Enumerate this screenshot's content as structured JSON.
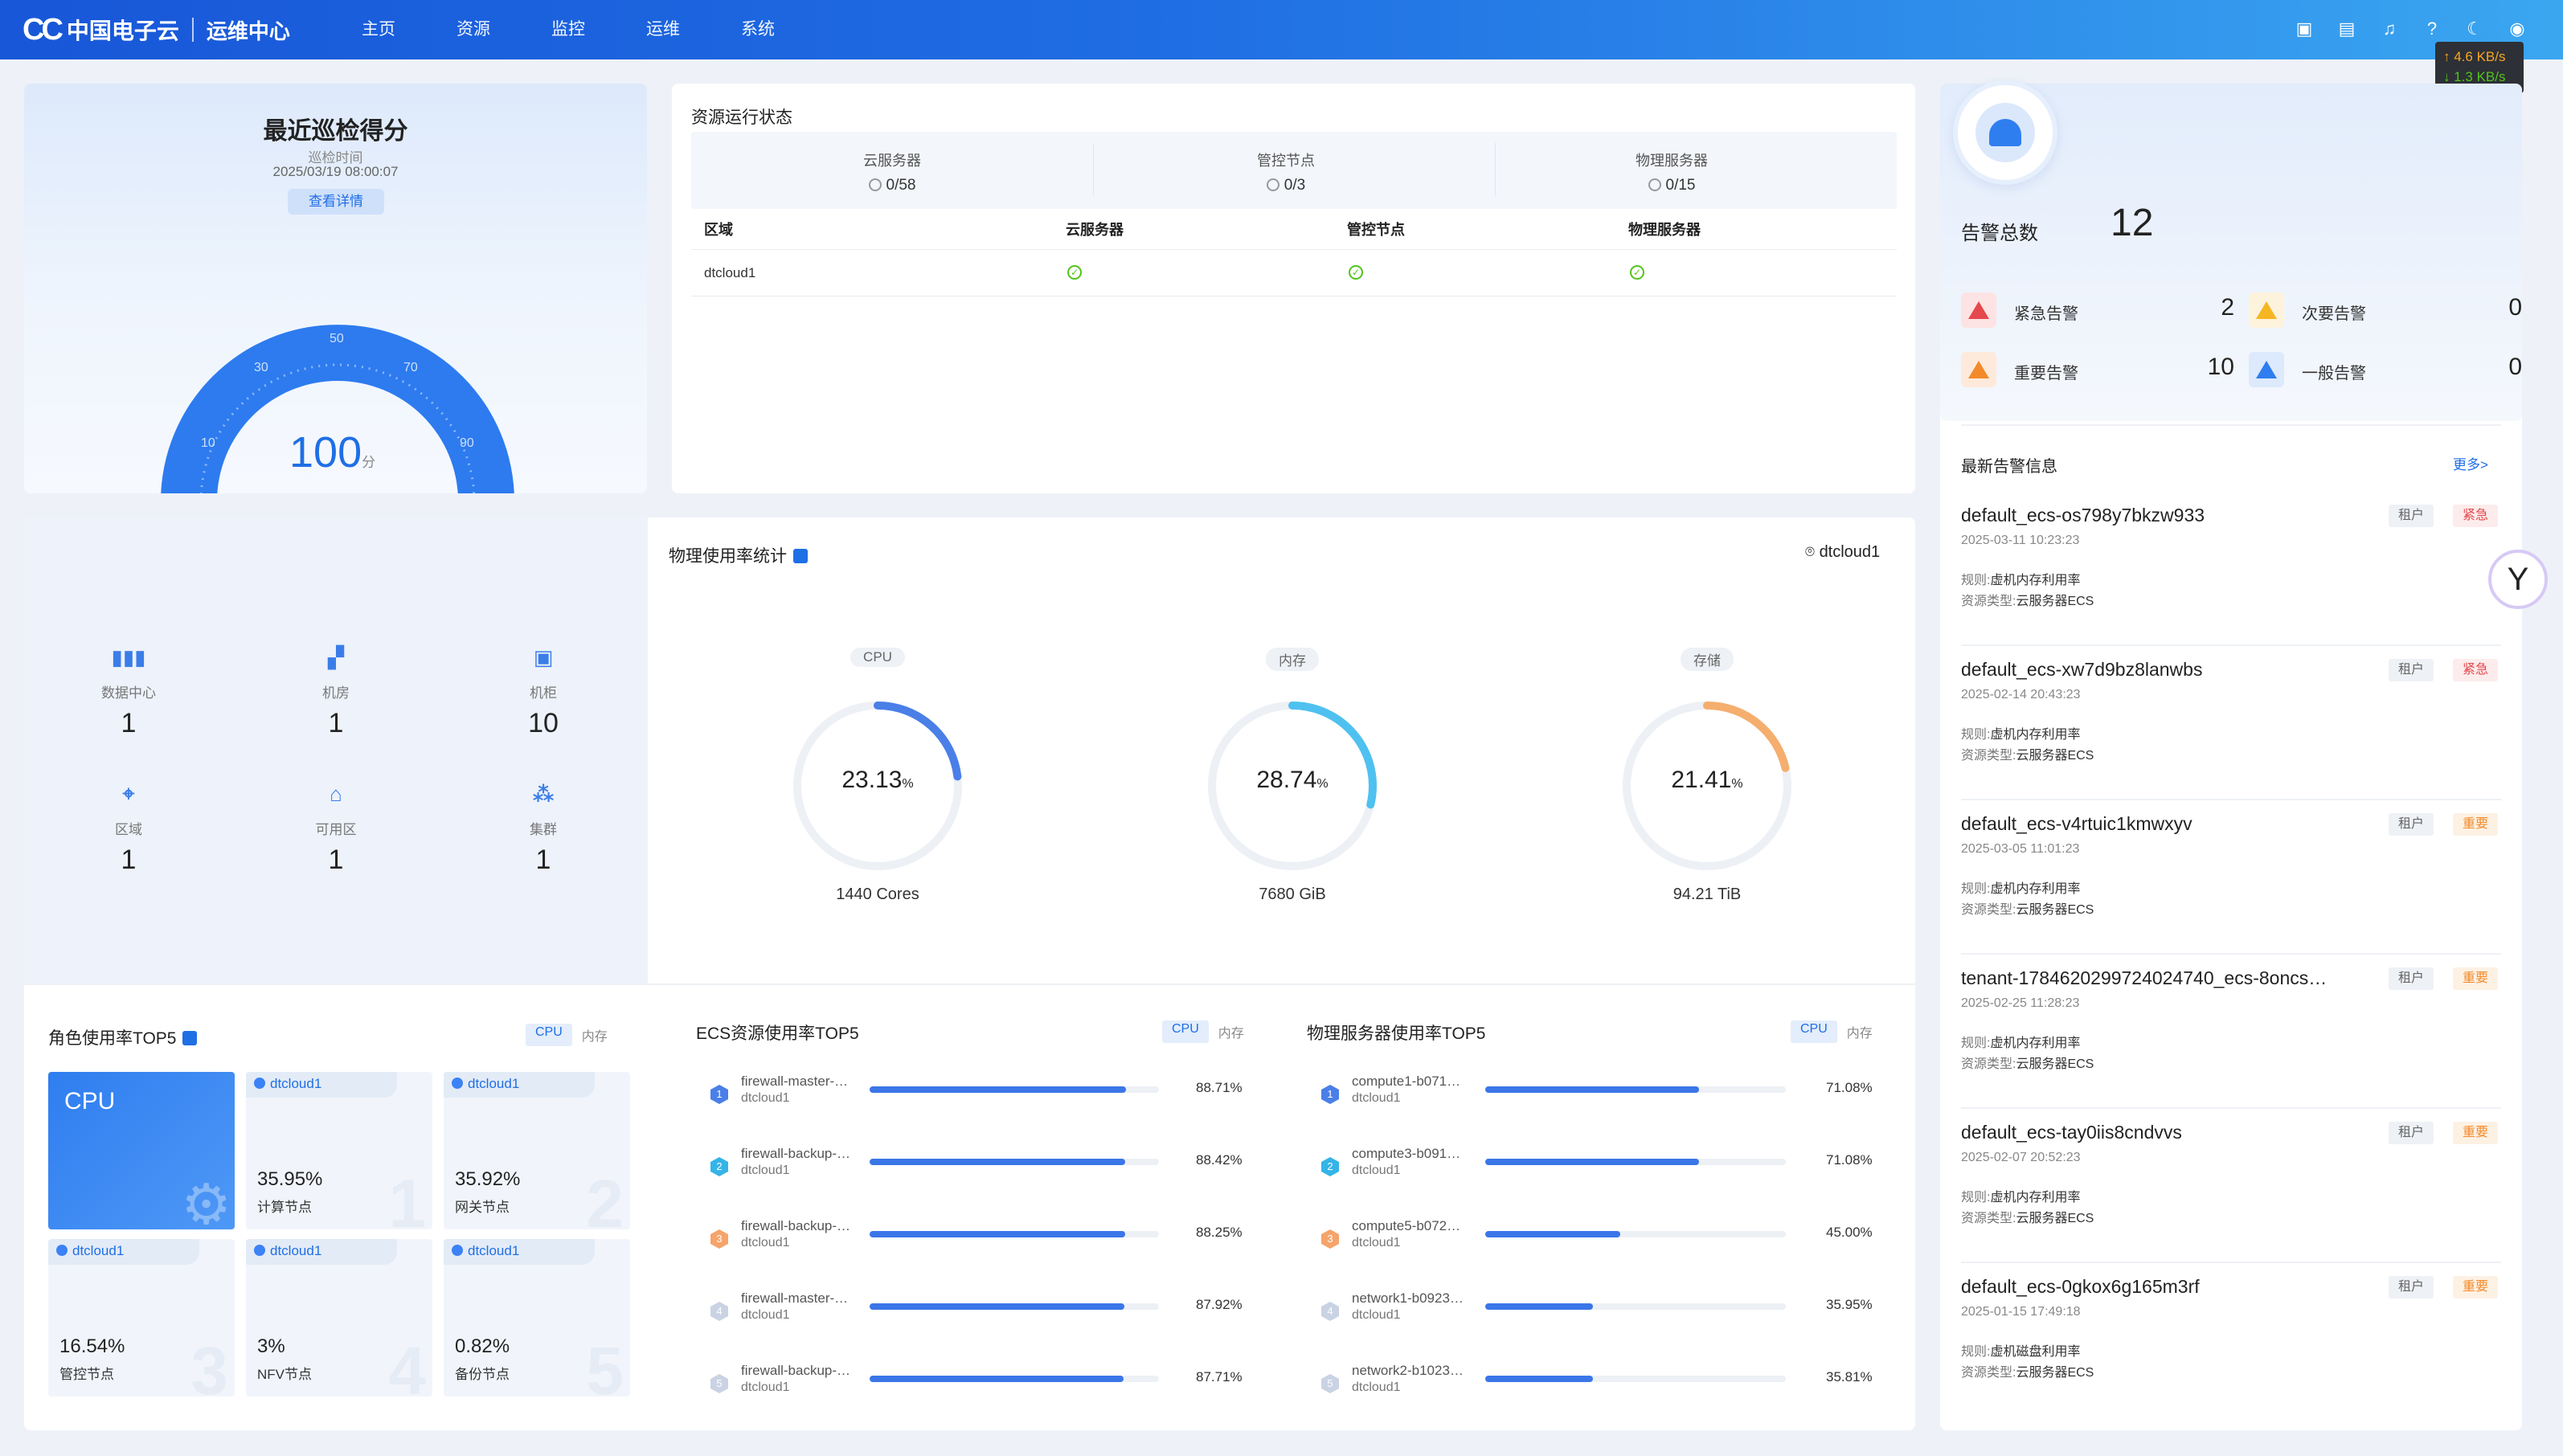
{
  "header": {
    "logo_mark": "CC",
    "brand": "中国电子云",
    "subtitle": "运维中心",
    "nav": [
      "主页",
      "资源",
      "监控",
      "运维",
      "系统"
    ],
    "icons": [
      "screen-icon",
      "document-icon",
      "bell-icon",
      "help-icon",
      "moon-icon",
      "user-icon"
    ],
    "net": {
      "up": "↑ 4.6 KB/s",
      "down": "↓ 1.3 KB/s"
    }
  },
  "score": {
    "title": "最近巡检得分",
    "time_label": "巡检时间",
    "time": "2025/03/19 08:00:07",
    "button": "查看详情",
    "value": "100",
    "unit": "分",
    "ticks": [
      "10",
      "30",
      "50",
      "70",
      "90"
    ],
    "gauge_value": 100
  },
  "resource": {
    "title": "资源运行状态",
    "summary": [
      {
        "label": "云服务器",
        "value": "0/58"
      },
      {
        "label": "管控节点",
        "value": "0/3"
      },
      {
        "label": "物理服务器",
        "value": "0/15"
      }
    ],
    "columns": [
      "区域",
      "云服务器",
      "管控节点",
      "物理服务器"
    ],
    "rows": [
      {
        "region": "dtcloud1"
      }
    ]
  },
  "alarm": {
    "total_label": "告警总数",
    "total": "12",
    "levels": [
      {
        "label": "紧急告警",
        "count": "2",
        "color": "#e5484d"
      },
      {
        "label": "次要告警",
        "count": "0",
        "color": "#f5b623"
      },
      {
        "label": "重要告警",
        "count": "10",
        "color": "#f28a2a"
      },
      {
        "label": "一般告警",
        "count": "0",
        "color": "#2f7ef0"
      }
    ],
    "latest_title": "最新告警信息",
    "more": "更多>",
    "rule_label": "规则:",
    "type_label": "资源类型:",
    "items": [
      {
        "name": "default_ecs-os798y7bkzw933",
        "date": "2025-03-11 10:23:23",
        "rule": "虚机内存利用率",
        "type": "云服务器ECS",
        "tag1": "租户",
        "tag2": "紧急",
        "tag2_color": "#e5484d",
        "tag2_bg": "#fdecec"
      },
      {
        "name": "default_ecs-xw7d9bz8lanwbs",
        "date": "2025-02-14 20:43:23",
        "rule": "虚机内存利用率",
        "type": "云服务器ECS",
        "tag1": "租户",
        "tag2": "紧急",
        "tag2_color": "#e5484d",
        "tag2_bg": "#fdecec"
      },
      {
        "name": "default_ecs-v4rtuic1kmwxyv",
        "date": "2025-03-05 11:01:23",
        "rule": "虚机内存利用率",
        "type": "云服务器ECS",
        "tag1": "租户",
        "tag2": "重要",
        "tag2_color": "#f28a2a",
        "tag2_bg": "#fdf1e4"
      },
      {
        "name": "tenant-1784620299724024740_ecs-8oncs…",
        "date": "2025-02-25 11:28:23",
        "rule": "虚机内存利用率",
        "type": "云服务器ECS",
        "tag1": "租户",
        "tag2": "重要",
        "tag2_color": "#f28a2a",
        "tag2_bg": "#fdf1e4"
      },
      {
        "name": "default_ecs-tay0iis8cndvvs",
        "date": "2025-02-07 20:52:23",
        "rule": "虚机内存利用率",
        "type": "云服务器ECS",
        "tag1": "租户",
        "tag2": "重要",
        "tag2_color": "#f28a2a",
        "tag2_bg": "#fdf1e4"
      },
      {
        "name": "default_ecs-0gkox6g165m3rf",
        "date": "2025-01-15 17:49:18",
        "rule": "虚机磁盘利用率",
        "type": "云服务器ECS",
        "tag1": "租户",
        "tag2": "重要",
        "tag2_color": "#f28a2a",
        "tag2_bg": "#fdf1e4"
      }
    ]
  },
  "infra": [
    {
      "label": "数据中心",
      "value": "1",
      "icon": "bar-chart-icon"
    },
    {
      "label": "机房",
      "value": "1",
      "icon": "building-icon"
    },
    {
      "label": "机柜",
      "value": "10",
      "icon": "cabinet-icon"
    },
    {
      "label": "区域",
      "value": "1",
      "icon": "region-icon"
    },
    {
      "label": "可用区",
      "value": "1",
      "icon": "zone-icon"
    },
    {
      "label": "集群",
      "value": "1",
      "icon": "cluster-icon"
    }
  ],
  "physical": {
    "title": "物理使用率统计",
    "location": "dtcloud1",
    "rings": [
      {
        "label": "CPU",
        "pct": "23.13",
        "value": 23.13,
        "cap": "1440 Cores",
        "color": "#4a7fe8"
      },
      {
        "label": "内存",
        "pct": "28.74",
        "value": 28.74,
        "cap": "7680 GiB",
        "color": "#4fc1f0"
      },
      {
        "label": "存储",
        "pct": "21.41",
        "value": 21.41,
        "cap": "94.21 TiB",
        "color": "#f5ae6e"
      }
    ],
    "unit": "%"
  },
  "role_top5": {
    "title": "角色使用率TOP5",
    "tabs": [
      "CPU",
      "内存"
    ],
    "cpu_label": "CPU",
    "tiles": [
      {
        "region": "dtcloud1",
        "pct": "35.95%",
        "name": "计算节点",
        "rank": "1"
      },
      {
        "region": "dtcloud1",
        "pct": "35.92%",
        "name": "网关节点",
        "rank": "2"
      },
      {
        "region": "dtcloud1",
        "pct": "16.54%",
        "name": "管控节点",
        "rank": "3"
      },
      {
        "region": "dtcloud1",
        "pct": "3%",
        "name": "NFV节点",
        "rank": "4"
      },
      {
        "region": "dtcloud1",
        "pct": "0.82%",
        "name": "备份节点",
        "rank": "5"
      }
    ]
  },
  "ecs_top5": {
    "title": "ECS资源使用率TOP5",
    "tabs": [
      "CPU",
      "内存"
    ],
    "rows": [
      {
        "rank": "1",
        "name": "firewall-master-…",
        "sub": "dtcloud1",
        "pct": "88.71%",
        "value": 88.71
      },
      {
        "rank": "2",
        "name": "firewall-backup-…",
        "sub": "dtcloud1",
        "pct": "88.42%",
        "value": 88.42
      },
      {
        "rank": "3",
        "name": "firewall-backup-…",
        "sub": "dtcloud1",
        "pct": "88.25%",
        "value": 88.25
      },
      {
        "rank": "4",
        "name": "firewall-master-…",
        "sub": "dtcloud1",
        "pct": "87.92%",
        "value": 87.92
      },
      {
        "rank": "5",
        "name": "firewall-backup-…",
        "sub": "dtcloud1",
        "pct": "87.71%",
        "value": 87.71
      }
    ]
  },
  "phys_top5": {
    "title": "物理服务器使用率TOP5",
    "tabs": [
      "CPU",
      "内存"
    ],
    "rows": [
      {
        "rank": "1",
        "name": "compute1-b071…",
        "sub": "dtcloud1",
        "pct": "71.08%",
        "value": 71.08
      },
      {
        "rank": "2",
        "name": "compute3-b091…",
        "sub": "dtcloud1",
        "pct": "71.08%",
        "value": 71.08
      },
      {
        "rank": "3",
        "name": "compute5-b072…",
        "sub": "dtcloud1",
        "pct": "45.00%",
        "value": 45.0
      },
      {
        "rank": "4",
        "name": "network1-b0923…",
        "sub": "dtcloud1",
        "pct": "35.95%",
        "value": 35.95
      },
      {
        "rank": "5",
        "name": "network2-b1023…",
        "sub": "dtcloud1",
        "pct": "35.81%",
        "value": 35.81
      }
    ]
  }
}
